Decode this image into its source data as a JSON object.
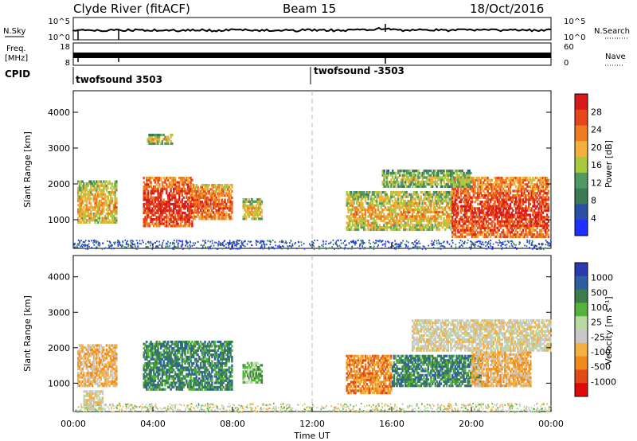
{
  "header": {
    "station": "Clyde River (fitACF)",
    "beam": "Beam 15",
    "date": "18/Oct/2016"
  },
  "meta_panels": {
    "nsky_label": "N.Sky",
    "nsky_ticks": [
      "10^5",
      "10^0"
    ],
    "nsearch_label": "N.Search",
    "nsearch_ticks": [
      "10^5",
      "10^0"
    ],
    "freq_label_line1": "Freq.",
    "freq_label_line2": "[MHz]",
    "freq_ticks": [
      "18",
      "8"
    ],
    "nave_label": "Nave",
    "nave_ticks": [
      "60",
      "0"
    ],
    "cpid_label": "CPID",
    "cpid_segments": [
      "twofsound 3503",
      "twofsound -3503"
    ]
  },
  "colors": {
    "power": [
      "#1f2fff",
      "#2a4fa8",
      "#3a7a55",
      "#4f9a63",
      "#a6c940",
      "#f2b13a",
      "#f07c22",
      "#e8451c",
      "#d81a1a"
    ],
    "velocity": [
      "#e00a0a",
      "#e24a1a",
      "#f08a1a",
      "#f4b040",
      "#c8c8c8",
      "#b9d9a0",
      "#53b33a",
      "#3b7d4c",
      "#2c60a3",
      "#2b3ab0"
    ]
  },
  "chart_data": [
    {
      "type": "heatmap",
      "name": "power",
      "ylabel": "Slant Range [km]",
      "xlabel": "Time UT",
      "ylim": [
        200,
        4600
      ],
      "xlim_hours": [
        0,
        24
      ],
      "x_tick_labels": [
        "00:00",
        "04:00",
        "08:00",
        "12:00",
        "16:00",
        "20:00",
        "00:00"
      ],
      "y_tick_labels": [
        "1000",
        "2000",
        "3000",
        "4000"
      ],
      "y_ticks_km": [
        1000,
        2000,
        3000,
        4000
      ],
      "colorbar": {
        "label": "Power [dB]",
        "ticks": [
          "4",
          "8",
          "12",
          "16",
          "20",
          "24",
          "28"
        ],
        "range": [
          0,
          30
        ]
      },
      "regions": [
        {
          "t0": 0.2,
          "t1": 2.2,
          "r0": 900,
          "r1": 2100,
          "v": 14
        },
        {
          "t0": 3.5,
          "t1": 6.0,
          "r0": 800,
          "r1": 2200,
          "v": 22
        },
        {
          "t0": 6.0,
          "t1": 8.0,
          "r0": 1000,
          "r1": 2000,
          "v": 19
        },
        {
          "t0": 8.5,
          "t1": 9.5,
          "r0": 1000,
          "r1": 1600,
          "v": 13
        },
        {
          "t0": 13.7,
          "t1": 19.0,
          "r0": 700,
          "r1": 1800,
          "v": 14
        },
        {
          "t0": 19.0,
          "t1": 23.9,
          "r0": 500,
          "r1": 2200,
          "v": 21
        },
        {
          "t0": 15.5,
          "t1": 20.0,
          "r0": 1900,
          "r1": 2400,
          "v": 10
        },
        {
          "t0": 3.7,
          "t1": 5.0,
          "r0": 3100,
          "r1": 3400,
          "v": 12
        }
      ],
      "noise_band": [
        200,
        450
      ]
    },
    {
      "type": "heatmap",
      "name": "velocity",
      "ylabel": "Slant Range [km]",
      "xlabel": "Time UT",
      "ylim": [
        200,
        4600
      ],
      "xlim_hours": [
        0,
        24
      ],
      "x_tick_labels": [
        "00:00",
        "04:00",
        "08:00",
        "12:00",
        "16:00",
        "20:00",
        "00:00"
      ],
      "y_tick_labels": [
        "1000",
        "2000",
        "3000",
        "4000"
      ],
      "y_ticks_km": [
        1000,
        2000,
        3000,
        4000
      ],
      "colorbar": {
        "label": "Velocity [m s⁻¹]",
        "ticks": [
          "1000",
          "500",
          "100",
          "25",
          "-25",
          "-100",
          "-500",
          "-1000"
        ]
      },
      "regions": [
        {
          "t0": 0.2,
          "t1": 2.2,
          "r0": 900,
          "r1": 2100,
          "v": 3
        },
        {
          "t0": 3.5,
          "t1": 8.0,
          "r0": 800,
          "r1": 2200,
          "v": 7
        },
        {
          "t0": 8.5,
          "t1": 9.5,
          "r0": 1000,
          "r1": 1600,
          "v": 6
        },
        {
          "t0": 13.7,
          "t1": 16.0,
          "r0": 700,
          "r1": 1800,
          "v": 2
        },
        {
          "t0": 16.0,
          "t1": 20.5,
          "r0": 900,
          "r1": 1800,
          "v": 7
        },
        {
          "t0": 20.0,
          "t1": 23.0,
          "r0": 900,
          "r1": 1900,
          "v": 3
        },
        {
          "t0": 17.0,
          "t1": 24.0,
          "r0": 1900,
          "r1": 2800,
          "v": 4
        },
        {
          "t0": 0.5,
          "t1": 1.5,
          "r0": 250,
          "r1": 800,
          "v": 4
        }
      ],
      "noise_band": [
        200,
        450
      ]
    }
  ]
}
